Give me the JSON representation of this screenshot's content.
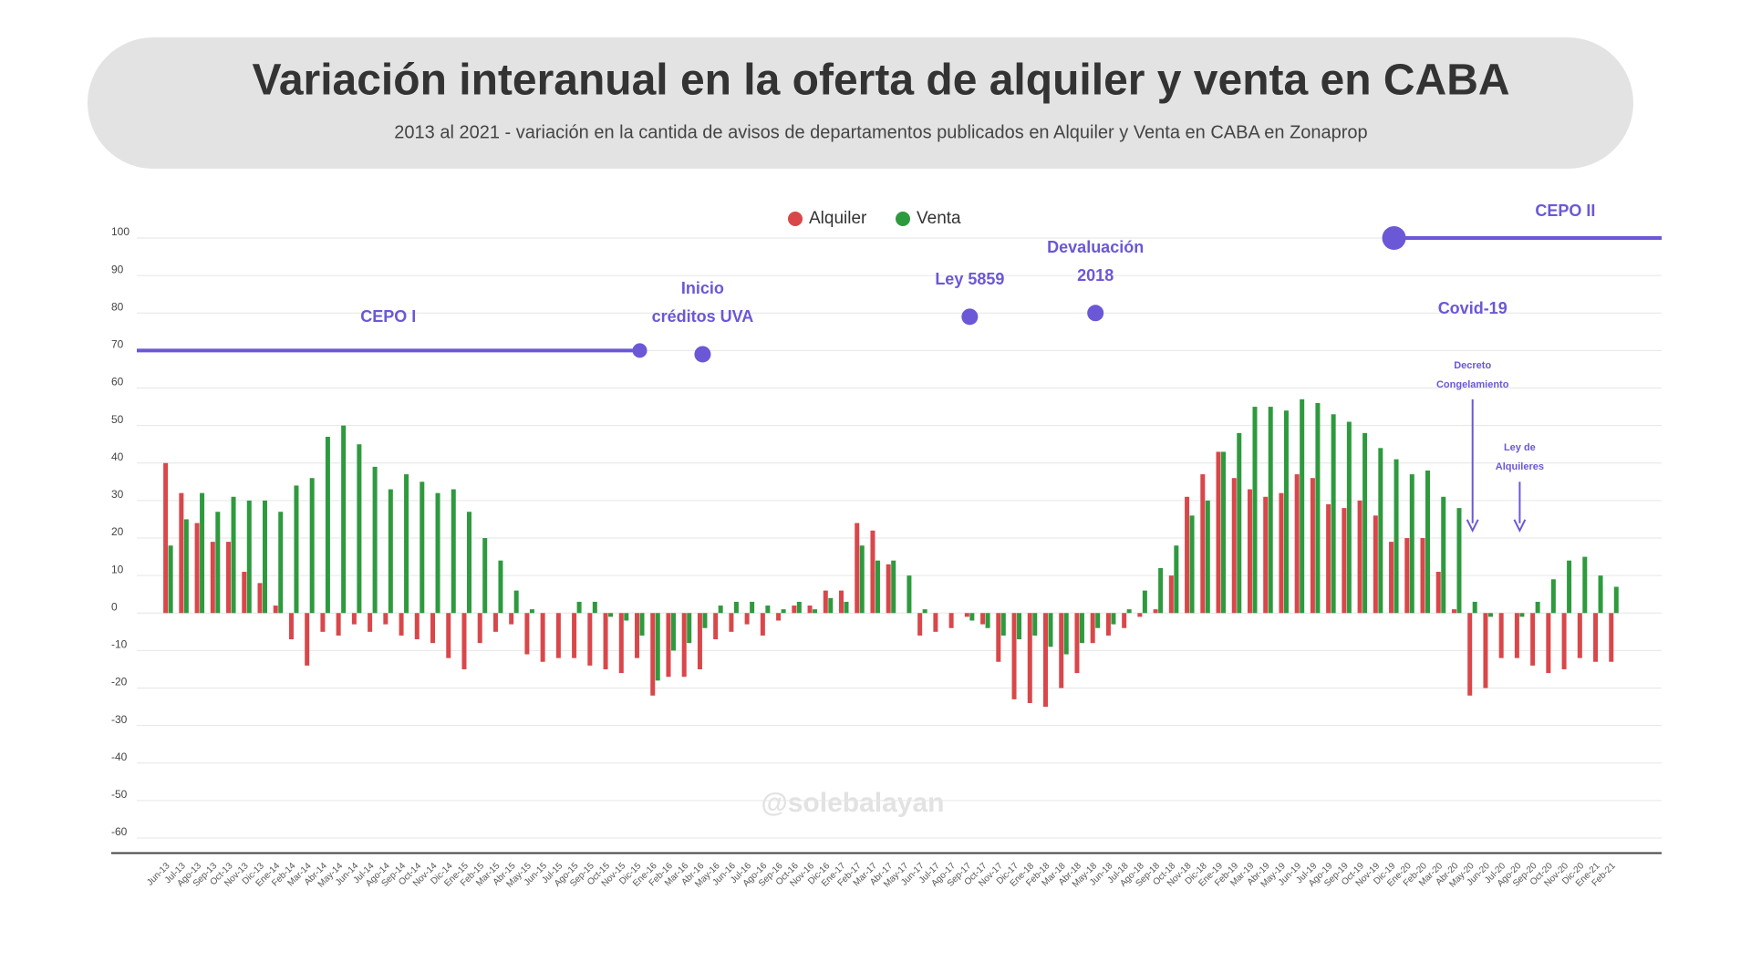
{
  "chart_data": {
    "type": "bar",
    "title": "Variación interanual en la oferta de alquiler y venta en CABA",
    "subtitle": "2013 al 2021 - variación en la cantida de avisos de departamentos publicados en Alquiler y Venta en CABA en Zonaprop",
    "watermark": "@solebalayan",
    "categories": [
      "Jun-13",
      "Jul-13",
      "Ago-13",
      "Sep-13",
      "Oct-13",
      "Nov-13",
      "Dic-13",
      "Ene-14",
      "Feb-14",
      "Mar-14",
      "Abr-14",
      "May-14",
      "Jun-14",
      "Jul-14",
      "Ago-14",
      "Sep-14",
      "Oct-14",
      "Nov-14",
      "Dic-14",
      "Ene-15",
      "Feb-15",
      "Mar-15",
      "Abr-15",
      "May-15",
      "Jun-15",
      "Jul-15",
      "Ago-15",
      "Sep-15",
      "Oct-15",
      "Nov-15",
      "Dic-15",
      "Ene-16",
      "Feb-16",
      "Mar-16",
      "Abr-16",
      "May-16",
      "Jun-16",
      "Jul-16",
      "Ago-16",
      "Sep-16",
      "Oct-16",
      "Nov-16",
      "Dic-16",
      "Ene-17",
      "Feb-17",
      "Mar-17",
      "Abr-17",
      "May-17",
      "Jun-17",
      "Jul-17",
      "Ago-17",
      "Sep-17",
      "Oct-17",
      "Nov-17",
      "Dic-17",
      "Ene-18",
      "Feb-18",
      "Mar-18",
      "Abr-18",
      "May-18",
      "Jun-18",
      "Jul-18",
      "Ago-18",
      "Sep-18",
      "Oct-18",
      "Nov-18",
      "Dic-18",
      "Ene-19",
      "Feb-19",
      "Mar-19",
      "Abr-19",
      "May-19",
      "Jun-19",
      "Jul-19",
      "Ago-19",
      "Sep-19",
      "Oct-19",
      "Nov-19",
      "Dic-19",
      "Ene-20",
      "Feb-20",
      "Mar-20",
      "Abr-20",
      "May-20",
      "Jun-20",
      "Jul-20",
      "Ago-20",
      "Sep-20",
      "Oct-20",
      "Nov-20",
      "Dic-20",
      "Ene-21",
      "Feb-21"
    ],
    "series": [
      {
        "name": "Alquiler",
        "color": "#d9474a",
        "values": [
          40,
          32,
          24,
          19,
          19,
          11,
          8,
          2,
          -7,
          -14,
          -5,
          -6,
          -3,
          -5,
          -3,
          -6,
          -7,
          -8,
          -12,
          -15,
          -8,
          -5,
          -3,
          -11,
          -13,
          -12,
          -12,
          -14,
          -15,
          -16,
          -12,
          -22,
          -17,
          -17,
          -15,
          -7,
          -5,
          -3,
          -6,
          -2,
          2,
          2,
          6,
          6,
          24,
          22,
          13,
          0,
          -6,
          -5,
          -4,
          -1,
          -3,
          -13,
          -23,
          -24,
          -25,
          -20,
          -16,
          -8,
          -6,
          -4,
          -1,
          1,
          10,
          31,
          37,
          43,
          36,
          33,
          31,
          32,
          37,
          36,
          29,
          28,
          30,
          26,
          19,
          20,
          20,
          11,
          1,
          -22,
          -20,
          -12,
          -12,
          -14,
          -16,
          -15,
          -12,
          -13,
          -13
        ]
      },
      {
        "name": "Venta",
        "color": "#2e9a3e",
        "values": [
          18,
          25,
          32,
          27,
          31,
          30,
          30,
          27,
          34,
          36,
          47,
          50,
          45,
          39,
          33,
          37,
          35,
          32,
          33,
          27,
          20,
          14,
          6,
          1,
          0,
          0,
          3,
          3,
          -1,
          -2,
          -6,
          -18,
          -10,
          -8,
          -4,
          2,
          3,
          3,
          2,
          1,
          3,
          1,
          4,
          3,
          18,
          14,
          14,
          10,
          1,
          0,
          0,
          -2,
          -4,
          -6,
          -7,
          -6,
          -9,
          -11,
          -8,
          -4,
          -3,
          1,
          6,
          12,
          18,
          26,
          30,
          43,
          48,
          55,
          55,
          54,
          57,
          56,
          53,
          51,
          48,
          44,
          41,
          37,
          38,
          31,
          28,
          3,
          -1,
          0,
          -1,
          3,
          9,
          14,
          15,
          10,
          7
        ]
      }
    ],
    "ylim": [
      -64,
      100
    ],
    "yticks": [
      -60,
      -50,
      -40,
      -30,
      -20,
      -10,
      0,
      10,
      20,
      30,
      40,
      50,
      60,
      70,
      80,
      90,
      100
    ],
    "grid": true,
    "legend": "top",
    "annotation_color": "#6a58d6",
    "annotations": [
      {
        "label": [
          "CEPO I"
        ],
        "x": "Dic-15",
        "y": 70,
        "extends": "left"
      },
      {
        "label": [
          "Inicio",
          "créditos UVA"
        ],
        "x": "Abr-16",
        "y": 69
      },
      {
        "label": [
          "Ley 5859"
        ],
        "x": "Sep-17",
        "y": 79
      },
      {
        "label": [
          "Devaluación",
          "2018"
        ],
        "x": "May-18",
        "y": 80
      },
      {
        "label": [
          "CEPO II"
        ],
        "x": "Dic-19",
        "y": 100,
        "extends": "right"
      },
      {
        "label": [
          "Covid-19"
        ],
        "x": "May-20",
        "y": 81,
        "kind": "text"
      },
      {
        "label": [
          "Decreto",
          "Congelamiento"
        ],
        "x": "May-20",
        "y": 57,
        "y_end": 22,
        "kind": "arrow"
      },
      {
        "label": [
          "Ley de",
          "Alquileres"
        ],
        "x": "Ago-20",
        "y": 35,
        "y_end": 22,
        "kind": "arrow"
      }
    ]
  }
}
